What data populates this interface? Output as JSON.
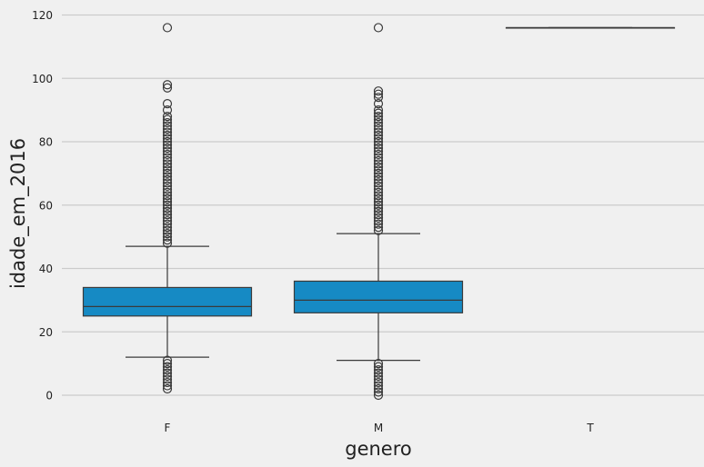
{
  "chart_data": {
    "type": "box",
    "xlabel": "genero",
    "ylabel": "idade_em_2016",
    "categories": [
      "F",
      "M",
      "T"
    ],
    "ylim": [
      -7,
      122
    ],
    "yticks": [
      0,
      20,
      40,
      60,
      80,
      100,
      120
    ],
    "grid": "horizontal",
    "colors": {
      "box": "#168ac4",
      "edge": "#3a3a3a",
      "grid": "#cbcbcb",
      "background": "#f0f0f0"
    },
    "boxes": [
      {
        "category": "F",
        "q1": 25,
        "median": 28,
        "q3": 34,
        "whisker_low": 12,
        "whisker_high": 47,
        "outliers_high": [
          48,
          49,
          50,
          51,
          52,
          53,
          54,
          55,
          56,
          57,
          58,
          59,
          60,
          61,
          62,
          63,
          64,
          65,
          66,
          67,
          68,
          69,
          70,
          71,
          72,
          73,
          74,
          75,
          76,
          77,
          78,
          79,
          80,
          81,
          82,
          83,
          84,
          85,
          86,
          87,
          88,
          90,
          92,
          97,
          98,
          116
        ],
        "outliers_low": [
          2,
          3,
          4,
          5,
          6,
          7,
          8,
          9,
          10,
          11
        ]
      },
      {
        "category": "M",
        "q1": 26,
        "median": 30,
        "q3": 36,
        "whisker_low": 11,
        "whisker_high": 51,
        "outliers_high": [
          52,
          53,
          54,
          55,
          56,
          57,
          58,
          59,
          60,
          61,
          62,
          63,
          64,
          65,
          66,
          67,
          68,
          69,
          70,
          71,
          72,
          73,
          74,
          75,
          76,
          77,
          78,
          79,
          80,
          81,
          82,
          83,
          84,
          85,
          86,
          87,
          88,
          89,
          90,
          92,
          94,
          95,
          96,
          116
        ],
        "outliers_low": [
          0,
          1,
          2,
          3,
          4,
          5,
          6,
          7,
          8,
          9,
          10
        ]
      },
      {
        "category": "T",
        "q1": 116,
        "median": 116,
        "q3": 116,
        "whisker_low": 116,
        "whisker_high": 116,
        "outliers_high": [],
        "outliers_low": []
      }
    ]
  }
}
